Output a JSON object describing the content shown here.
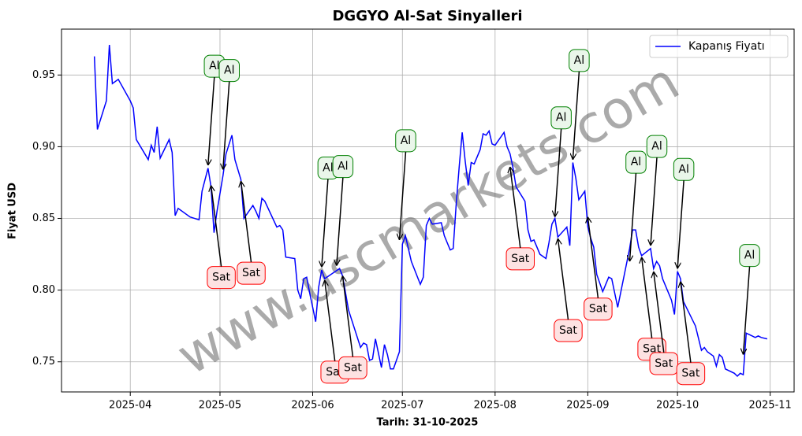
{
  "chart_data": {
    "type": "line",
    "title": "DGGYO Al-Sat Sinyalleri",
    "xlabel": "Tarih: 31-10-2025",
    "ylabel": "Fiyat USD",
    "watermark": "www.uscmarkets.com",
    "x": [
      "2025-03-20",
      "2025-03-21",
      "2025-03-24",
      "2025-03-25",
      "2025-03-26",
      "2025-03-28",
      "2025-04-01",
      "2025-04-02",
      "2025-04-03",
      "2025-04-07",
      "2025-04-08",
      "2025-04-09",
      "2025-04-10",
      "2025-04-11",
      "2025-04-14",
      "2025-04-15",
      "2025-04-16",
      "2025-04-17",
      "2025-04-21",
      "2025-04-24",
      "2025-04-25",
      "2025-04-27",
      "2025-04-28",
      "2025-04-29",
      "2025-04-30",
      "2025-05-02",
      "2025-05-03",
      "2025-05-05",
      "2025-05-06",
      "2025-05-08",
      "2025-05-09",
      "2025-05-12",
      "2025-05-13",
      "2025-05-14",
      "2025-05-15",
      "2025-05-16",
      "2025-05-20",
      "2025-05-21",
      "2025-05-22",
      "2025-05-23",
      "2025-05-26",
      "2025-05-27",
      "2025-05-28",
      "2025-05-29",
      "2025-05-30",
      "2025-05-31",
      "2025-06-02",
      "2025-06-03",
      "2025-06-04",
      "2025-06-05",
      "2025-06-10",
      "2025-06-11",
      "2025-06-13",
      "2025-06-17",
      "2025-06-18",
      "2025-06-19",
      "2025-06-20",
      "2025-06-21",
      "2025-06-22",
      "2025-06-23",
      "2025-06-24",
      "2025-06-25",
      "2025-06-26",
      "2025-06-27",
      "2025-06-28",
      "2025-06-29",
      "2025-06-30",
      "2025-07-01",
      "2025-07-02",
      "2025-07-04",
      "2025-07-07",
      "2025-07-08",
      "2025-07-09",
      "2025-07-10",
      "2025-07-11",
      "2025-07-14",
      "2025-07-15",
      "2025-07-17",
      "2025-07-18",
      "2025-07-19",
      "2025-07-20",
      "2025-07-21",
      "2025-07-22",
      "2025-07-23",
      "2025-07-24",
      "2025-07-25",
      "2025-07-27",
      "2025-07-28",
      "2025-07-29",
      "2025-07-30",
      "2025-07-31",
      "2025-08-01",
      "2025-08-02",
      "2025-08-04",
      "2025-08-05",
      "2025-08-06",
      "2025-08-07",
      "2025-08-08",
      "2025-08-11",
      "2025-08-12",
      "2025-08-13",
      "2025-08-14",
      "2025-08-16",
      "2025-08-18",
      "2025-08-19",
      "2025-08-20",
      "2025-08-21",
      "2025-08-22",
      "2025-08-25",
      "2025-08-26",
      "2025-08-27",
      "2025-08-28",
      "2025-08-29",
      "2025-08-31",
      "2025-09-01",
      "2025-09-02",
      "2025-09-03",
      "2025-09-04",
      "2025-09-06",
      "2025-09-08",
      "2025-09-09",
      "2025-09-10",
      "2025-09-11",
      "2025-09-15",
      "2025-09-16",
      "2025-09-17",
      "2025-09-18",
      "2025-09-19",
      "2025-09-22",
      "2025-09-23",
      "2025-09-24",
      "2025-09-25",
      "2025-09-26",
      "2025-09-29",
      "2025-09-30",
      "2025-10-01",
      "2025-10-02",
      "2025-10-03",
      "2025-10-07",
      "2025-10-09",
      "2025-10-10",
      "2025-10-11",
      "2025-10-13",
      "2025-10-14",
      "2025-10-15",
      "2025-10-16",
      "2025-10-17",
      "2025-10-20",
      "2025-10-21",
      "2025-10-22",
      "2025-10-23",
      "2025-10-24",
      "2025-10-26",
      "2025-10-27",
      "2025-10-28",
      "2025-10-29",
      "2025-10-31"
    ],
    "series": [
      {
        "name": "Kapanış Fiyatı",
        "color": "#0000ff",
        "values": [
          0.963,
          0.912,
          0.932,
          0.971,
          0.944,
          0.947,
          0.932,
          0.927,
          0.905,
          0.891,
          0.901,
          0.896,
          0.914,
          0.892,
          0.905,
          0.896,
          0.852,
          0.857,
          0.851,
          0.849,
          0.869,
          0.885,
          0.872,
          0.84,
          0.855,
          0.88,
          0.895,
          0.908,
          0.891,
          0.877,
          0.85,
          0.859,
          0.855,
          0.85,
          0.864,
          0.862,
          0.844,
          0.845,
          0.842,
          0.823,
          0.822,
          0.8,
          0.794,
          0.808,
          0.809,
          0.798,
          0.778,
          0.802,
          0.814,
          0.808,
          0.815,
          0.81,
          0.786,
          0.76,
          0.763,
          0.762,
          0.751,
          0.752,
          0.766,
          0.756,
          0.746,
          0.762,
          0.755,
          0.745,
          0.745,
          0.751,
          0.757,
          0.832,
          0.838,
          0.82,
          0.804,
          0.809,
          0.845,
          0.85,
          0.846,
          0.847,
          0.838,
          0.828,
          0.829,
          0.86,
          0.886,
          0.91,
          0.89,
          0.873,
          0.889,
          0.888,
          0.898,
          0.909,
          0.908,
          0.911,
          0.902,
          0.901,
          0.904,
          0.91,
          0.9,
          0.895,
          0.885,
          0.872,
          0.862,
          0.842,
          0.834,
          0.835,
          0.825,
          0.822,
          0.833,
          0.846,
          0.85,
          0.837,
          0.844,
          0.831,
          0.889,
          0.878,
          0.863,
          0.869,
          0.844,
          0.836,
          0.83,
          0.811,
          0.799,
          0.809,
          0.808,
          0.798,
          0.788,
          0.829,
          0.842,
          0.842,
          0.83,
          0.824,
          0.829,
          0.815,
          0.82,
          0.817,
          0.808,
          0.793,
          0.783,
          0.813,
          0.808,
          0.792,
          0.775,
          0.758,
          0.76,
          0.757,
          0.754,
          0.747,
          0.755,
          0.753,
          0.745,
          0.742,
          0.74,
          0.742,
          0.741,
          0.77,
          0.768,
          0.767,
          0.768,
          0.767,
          0.766
        ]
      }
    ],
    "signals": [
      {
        "text": "Al",
        "edgecolor": "#008000",
        "facecolor": "#eaf6ea",
        "points": [
          {
            "x": "2025-04-27",
            "y": 0.887
          },
          {
            "x": "2025-05-02",
            "y": 0.884
          },
          {
            "x": "2025-06-04",
            "y": 0.816
          },
          {
            "x": "2025-06-09",
            "y": 0.817
          },
          {
            "x": "2025-06-30",
            "y": 0.835
          },
          {
            "x": "2025-08-21",
            "y": 0.851
          },
          {
            "x": "2025-08-27",
            "y": 0.891
          },
          {
            "x": "2025-09-15",
            "y": 0.82
          },
          {
            "x": "2025-09-22",
            "y": 0.831
          },
          {
            "x": "2025-10-01",
            "y": 0.815
          },
          {
            "x": "2025-10-23",
            "y": 0.755
          }
        ]
      },
      {
        "text": "Sat",
        "edgecolor": "#ff0000",
        "facecolor": "#fde2e2",
        "points": [
          {
            "x": "2025-04-28",
            "y": 0.873
          },
          {
            "x": "2025-05-08",
            "y": 0.876
          },
          {
            "x": "2025-06-05",
            "y": 0.807
          },
          {
            "x": "2025-06-11",
            "y": 0.81
          },
          {
            "x": "2025-08-06",
            "y": 0.886
          },
          {
            "x": "2025-08-22",
            "y": 0.836
          },
          {
            "x": "2025-09-01",
            "y": 0.851
          },
          {
            "x": "2025-09-19",
            "y": 0.823
          },
          {
            "x": "2025-09-23",
            "y": 0.813
          },
          {
            "x": "2025-10-02",
            "y": 0.806
          }
        ]
      }
    ],
    "xlim": [
      "2025-03-09",
      "2025-11-09"
    ],
    "xticks": [
      {
        "value": "2025-04-01",
        "label": "2025-04"
      },
      {
        "value": "2025-05-01",
        "label": "2025-05"
      },
      {
        "value": "2025-06-01",
        "label": "2025-06"
      },
      {
        "value": "2025-07-01",
        "label": "2025-07"
      },
      {
        "value": "2025-08-01",
        "label": "2025-08"
      },
      {
        "value": "2025-09-01",
        "label": "2025-09"
      },
      {
        "value": "2025-10-01",
        "label": "2025-10"
      },
      {
        "value": "2025-11-01",
        "label": "2025-11"
      }
    ],
    "ylim": [
      0.729,
      0.982
    ],
    "yticks": [
      0.75,
      {
        "value": 0.8,
        "label": "0.80"
      },
      0.85,
      {
        "value": 0.9,
        "label": "0.90"
      },
      0.95
    ],
    "grid": true,
    "legend": "upper right"
  }
}
